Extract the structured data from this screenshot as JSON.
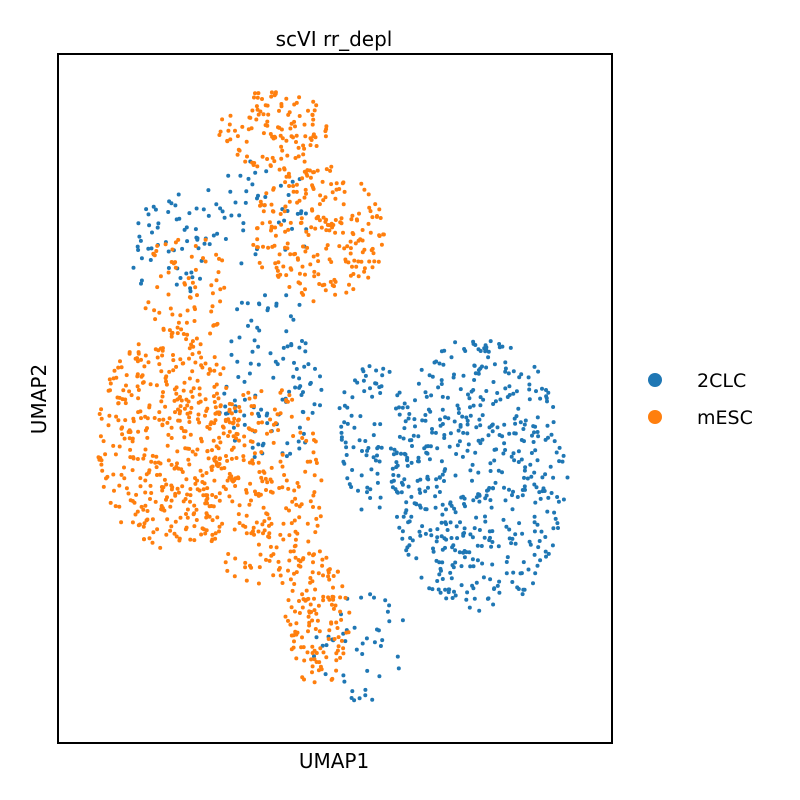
{
  "chart_data": {
    "type": "scatter",
    "title": "scVI rr_depl",
    "xlabel": "UMAP1",
    "ylabel": "UMAP2",
    "xlim": [
      0,
      100
    ],
    "ylim": [
      0,
      100
    ],
    "grid": false,
    "ticks": "none",
    "legend_position": "right-outside",
    "series": [
      {
        "name": "2CLC",
        "color": "#1f77b4",
        "regions": [
          {
            "cx": 76,
            "cy": 61,
            "rx": 16,
            "ry": 20,
            "count": 520
          },
          {
            "cx": 57,
            "cy": 56,
            "rx": 7,
            "ry": 11,
            "count": 90
          },
          {
            "cx": 55,
            "cy": 86,
            "rx": 9,
            "ry": 8,
            "count": 45
          },
          {
            "cx": 38,
            "cy": 47,
            "rx": 10,
            "ry": 13,
            "count": 110
          },
          {
            "cx": 20,
            "cy": 28,
            "rx": 7,
            "ry": 8,
            "count": 55
          },
          {
            "cx": 36,
            "cy": 23,
            "rx": 11,
            "ry": 8,
            "count": 50
          }
        ]
      },
      {
        "name": "mESC",
        "color": "#ff7f0e",
        "regions": [
          {
            "cx": 20,
            "cy": 56,
            "rx": 13,
            "ry": 16,
            "count": 430
          },
          {
            "cx": 37,
            "cy": 63,
            "rx": 11,
            "ry": 15,
            "count": 240
          },
          {
            "cx": 47,
            "cy": 82,
            "rx": 6,
            "ry": 10,
            "count": 130
          },
          {
            "cx": 47,
            "cy": 26,
            "rx": 12,
            "ry": 10,
            "count": 230
          },
          {
            "cx": 39,
            "cy": 11,
            "rx": 10,
            "ry": 6,
            "count": 120
          },
          {
            "cx": 23,
            "cy": 34,
            "rx": 8,
            "ry": 8,
            "count": 70
          }
        ]
      }
    ]
  }
}
